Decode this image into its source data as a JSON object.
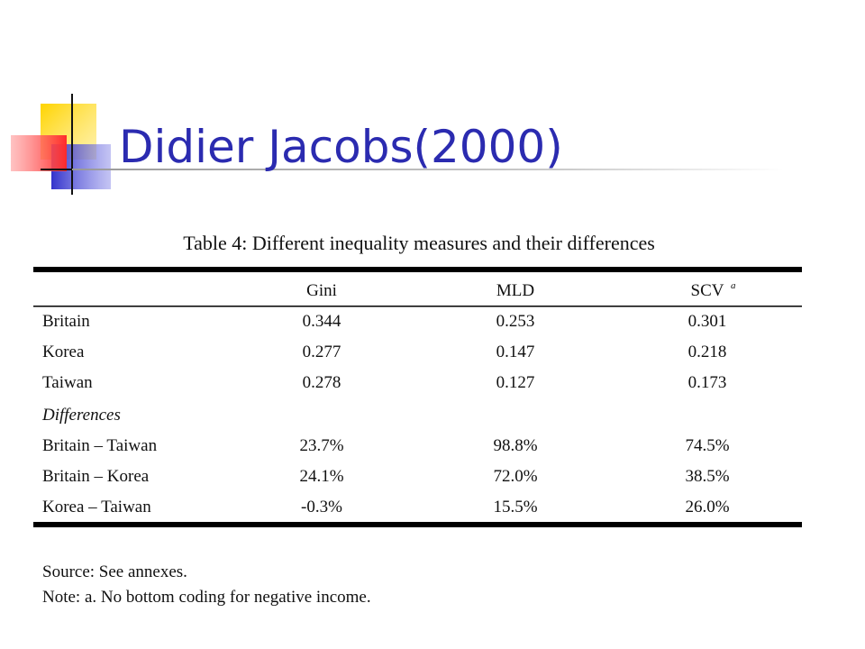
{
  "slide": {
    "title": "Didier Jacobs(2000)"
  },
  "table": {
    "caption": "Table 4: Different inequality measures and their differences",
    "columns": [
      "Gini",
      "MLD",
      "SCV"
    ],
    "column_note_mark": "a",
    "rows": [
      [
        "Britain",
        "0.344",
        "0.253",
        "0.301"
      ],
      [
        "Korea",
        "0.277",
        "0.147",
        "0.218"
      ],
      [
        "Taiwan",
        "0.278",
        "0.127",
        "0.173"
      ]
    ],
    "section": "Differences",
    "difference_rows": [
      [
        "Britain – Taiwan",
        "23.7%",
        "98.8%",
        "74.5%"
      ],
      [
        "Britain – Korea",
        "24.1%",
        "72.0%",
        "38.5%"
      ],
      [
        "Korea – Taiwan",
        "-0.3%",
        "15.5%",
        "26.0%"
      ]
    ],
    "notes": [
      "Source: See annexes.",
      "Note: a. No bottom coding for negative income."
    ]
  }
}
